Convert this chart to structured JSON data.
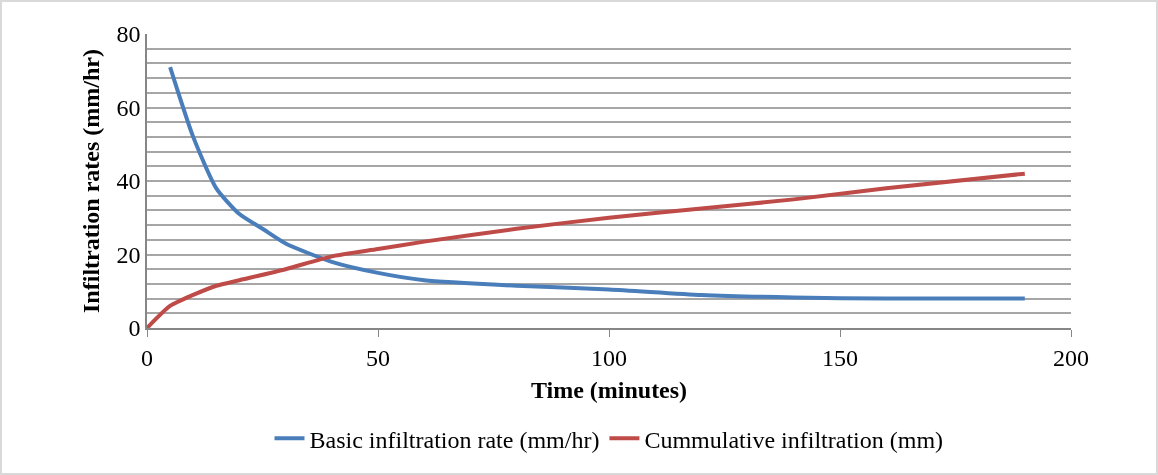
{
  "chart_data": {
    "type": "line",
    "xlabel": "Time (minutes)",
    "ylabel": "Infiltration rates (mm/hr)",
    "series": [
      {
        "name": "Basic infiltration rate (mm/hr)",
        "color": "#4a7ebb",
        "x": [
          5,
          10,
          15,
          20,
          25,
          30,
          40,
          50,
          60,
          80,
          100,
          120,
          140,
          160,
          190
        ],
        "values": [
          71,
          52,
          38,
          31,
          27,
          23,
          18,
          15,
          13,
          11.5,
          10.5,
          9,
          8.3,
          8,
          8
        ]
      },
      {
        "name": "Cummulative infiltration (mm)",
        "color": "#be4b48",
        "x": [
          0,
          5,
          10,
          15,
          20,
          30,
          40,
          50,
          60,
          80,
          100,
          120,
          140,
          160,
          190
        ],
        "values": [
          0,
          6,
          9,
          11.5,
          13,
          16,
          19.5,
          21.5,
          23.5,
          27,
          30,
          32.5,
          35,
          38,
          42
        ]
      }
    ],
    "xlim": [
      0,
      200
    ],
    "xticks": [
      0,
      50,
      100,
      150,
      200
    ],
    "ylim": [
      0,
      80
    ],
    "yticks": [
      0,
      {
        "value": 4,
        "label": null
      },
      {
        "value": 8,
        "label": null
      },
      {
        "value": 12,
        "label": null
      },
      {
        "value": 16,
        "label": null
      },
      20,
      {
        "value": 24,
        "label": null
      },
      {
        "value": 28,
        "label": null
      },
      {
        "value": 32,
        "label": null
      },
      {
        "value": 36,
        "label": null
      },
      40,
      {
        "value": 44,
        "label": null
      },
      {
        "value": 48,
        "label": null
      },
      {
        "value": 52,
        "label": null
      },
      {
        "value": 56,
        "label": null
      },
      60,
      {
        "value": 64,
        "label": null
      },
      {
        "value": 68,
        "label": null
      },
      {
        "value": 72,
        "label": null
      },
      {
        "value": 76,
        "label": null
      },
      80
    ],
    "grid": "y",
    "legend": "bottom",
    "marker": "none",
    "line_style": "solid"
  }
}
